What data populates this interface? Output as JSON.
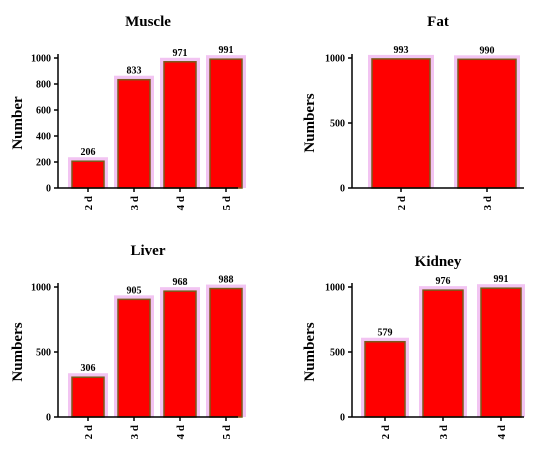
{
  "colors": {
    "bar_fill": "#ff0000",
    "bar_stroke": "#7a5a1a",
    "bar_halo": "#f2c4f2",
    "axis": "#000000"
  },
  "chart_data": [
    {
      "type": "bar",
      "title": "Muscle",
      "ylabel": "Number",
      "categories": [
        "2 d",
        "3 d",
        "4 d",
        "5 d"
      ],
      "values": [
        206,
        833,
        971,
        991
      ],
      "data_labels": [
        "206",
        "833",
        "971",
        "991"
      ],
      "ylim": [
        0,
        1000
      ],
      "yticks": [
        0,
        200,
        400,
        600,
        800,
        1000
      ],
      "ytick_labels": [
        "0",
        "200",
        "400",
        "600",
        "800",
        "1000"
      ]
    },
    {
      "type": "bar",
      "title": "Fat",
      "ylabel": "Numbers",
      "categories": [
        "2 d",
        "3 d"
      ],
      "values": [
        993,
        990
      ],
      "data_labels": [
        "993",
        "990"
      ],
      "ylim": [
        0,
        1000
      ],
      "yticks": [
        0,
        500,
        1000
      ],
      "ytick_labels": [
        "0",
        "500",
        "1000"
      ]
    },
    {
      "type": "bar",
      "title": "Liver",
      "ylabel": "Numbers",
      "categories": [
        "2 d",
        "3 d",
        "4 d",
        "5 d"
      ],
      "values": [
        306,
        905,
        968,
        988
      ],
      "data_labels": [
        "306",
        "905",
        "968",
        "988"
      ],
      "ylim": [
        0,
        1000
      ],
      "yticks": [
        0,
        500,
        1000
      ],
      "ytick_labels": [
        "0",
        "500",
        "1000"
      ]
    },
    {
      "type": "bar",
      "title": "Kidney",
      "ylabel": "Numbers",
      "categories": [
        "2 d",
        "3 d",
        "4 d"
      ],
      "values": [
        579,
        976,
        991
      ],
      "data_labels": [
        "579",
        "976",
        "991"
      ],
      "ylim": [
        0,
        1000
      ],
      "yticks": [
        0,
        500,
        1000
      ],
      "ytick_labels": [
        "0",
        "500",
        "1000"
      ]
    }
  ]
}
